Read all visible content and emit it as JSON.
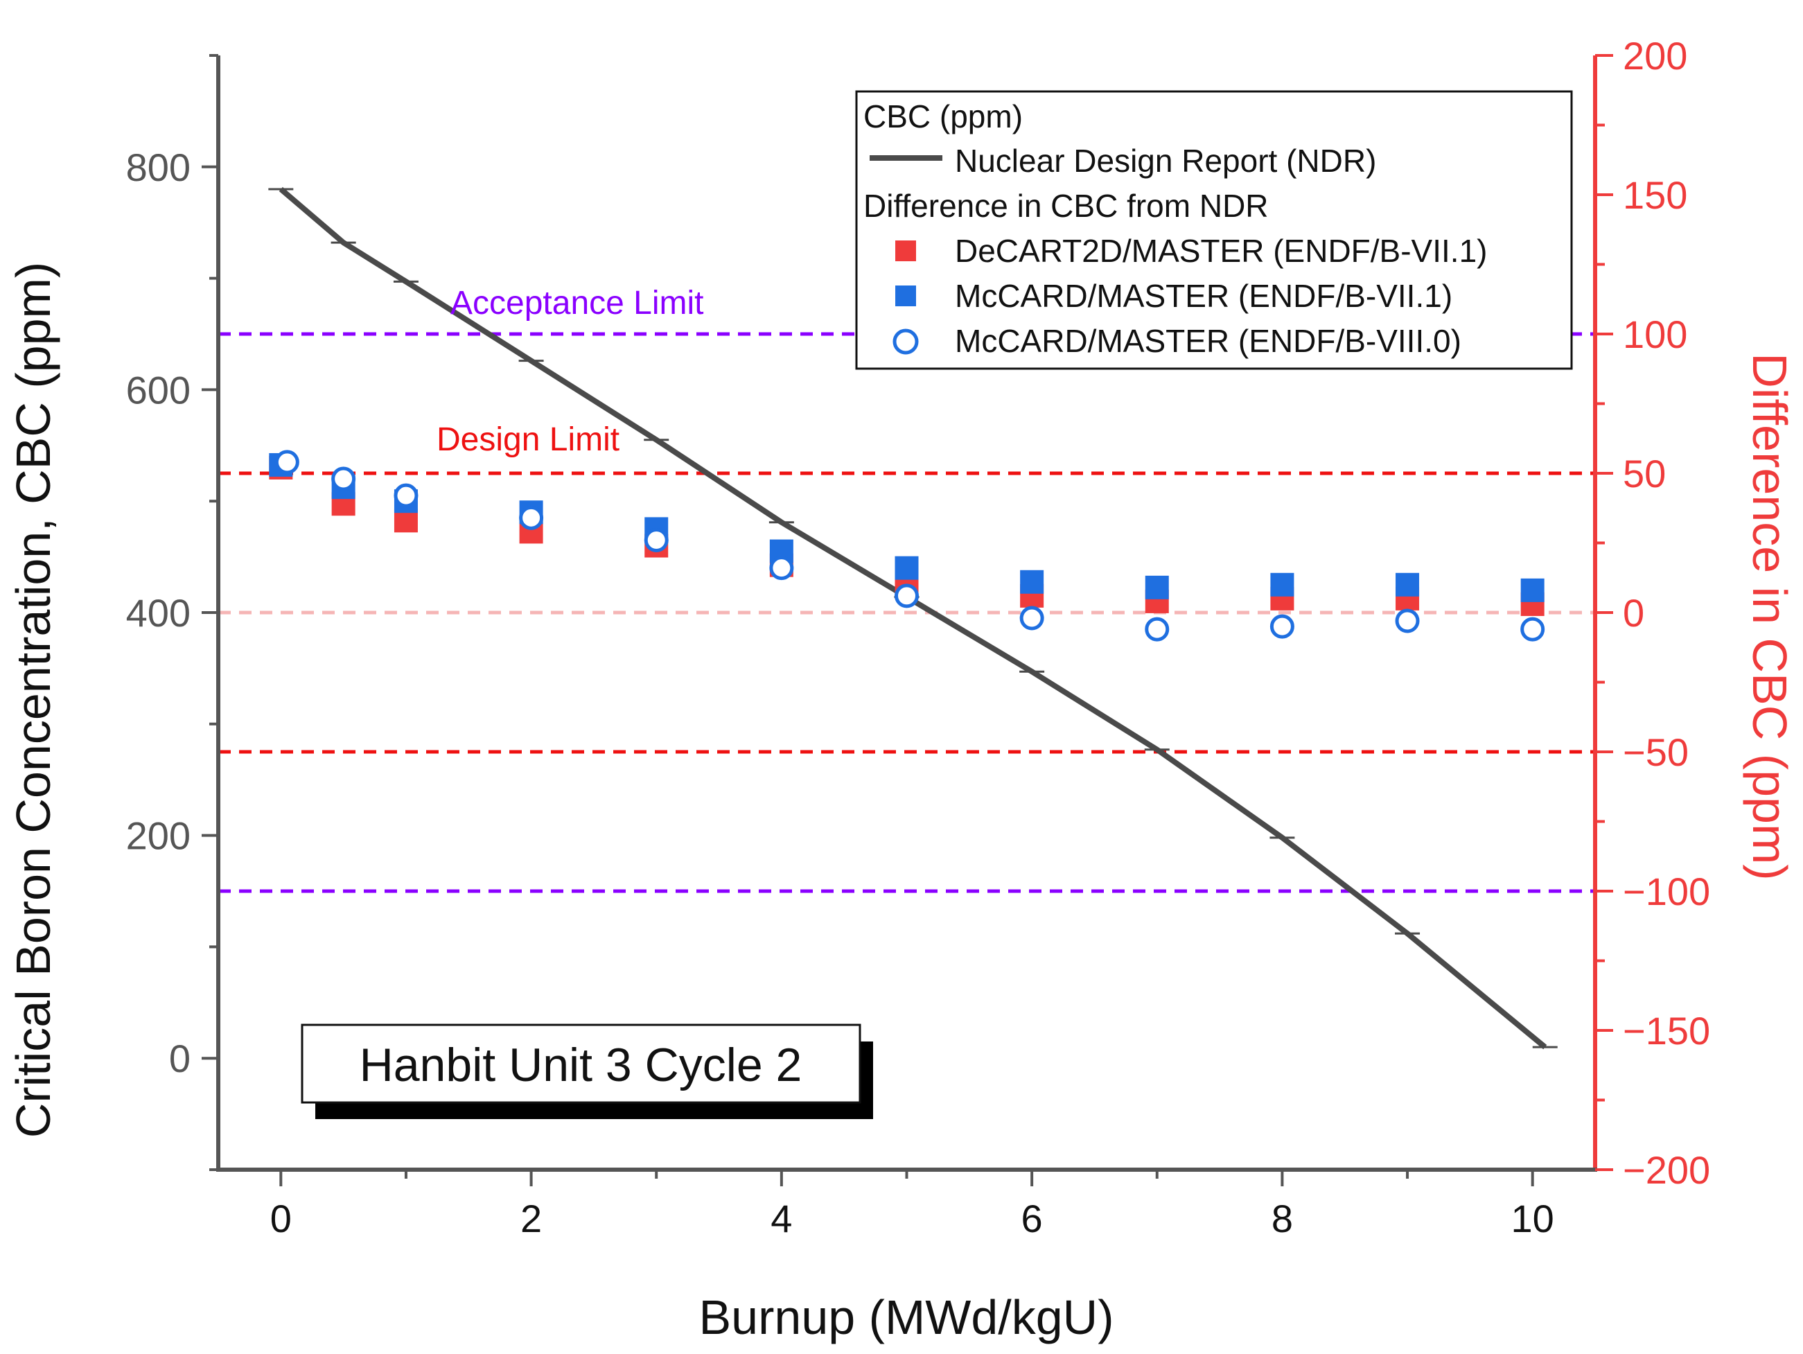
{
  "chart_data": {
    "type": "line",
    "title": "",
    "annotation": "Hanbit Unit 3 Cycle 2",
    "xlabel": "Burnup (MWd/kgU)",
    "ylabel_left": "Critical Boron Concentration, CBC (ppm)",
    "ylabel_right": "Difference in CBC (ppm)",
    "xlim": [
      -0.5,
      10.5
    ],
    "ylim_left": [
      -100,
      900
    ],
    "ylim_right": [
      -200,
      200
    ],
    "x_ticks": [
      0,
      2,
      4,
      6,
      8,
      10
    ],
    "y_ticks_left": [
      0,
      200,
      400,
      600,
      800
    ],
    "y_ticks_right": [
      -200,
      -150,
      -100,
      -50,
      0,
      50,
      100,
      150,
      200
    ],
    "y_tick_labels_right": [
      "−200",
      "−150",
      "−100",
      "−50",
      "0",
      "50",
      "100",
      "150",
      "200"
    ],
    "x": [
      0,
      0.5,
      1,
      2,
      3,
      4,
      5,
      6,
      7,
      8,
      9,
      10
    ],
    "cbc_series": {
      "name": "Nuclear Design Report (NDR)",
      "x": [
        0,
        0.5,
        1,
        2,
        3,
        4,
        5,
        6,
        7,
        8,
        9,
        10.1
      ],
      "values": [
        780,
        732,
        697,
        626,
        555,
        481,
        414,
        347,
        277,
        198,
        112,
        10
      ]
    },
    "series": [
      {
        "name": "DeCART2D/MASTER (ENDF/B-VII.1)",
        "marker": "square",
        "values": [
          52,
          39,
          33,
          29,
          24,
          17,
          9,
          6,
          4,
          5,
          5,
          3
        ]
      },
      {
        "name": "McCARD/MASTER (ENDF/B-VII.1)",
        "marker": "square",
        "values": [
          53,
          45,
          40,
          36,
          30,
          22,
          16,
          11,
          9,
          10,
          10,
          8
        ]
      },
      {
        "name": "McCARD/MASTER (ENDF/B-VIII.0)",
        "marker": "open-circle",
        "values": [
          54,
          48,
          42,
          34,
          26,
          16,
          6,
          -2,
          -6,
          -5,
          -3,
          -6
        ]
      }
    ],
    "limits": [
      {
        "label": "Acceptance Limit",
        "value": 100,
        "mirror": -100
      },
      {
        "label": "Design Limit",
        "value": 50,
        "mirror": -50
      },
      {
        "label": "",
        "value": 0
      }
    ],
    "legend": {
      "position": "top-right",
      "header1": "CBC (ppm)",
      "header2": "Difference in CBC from NDR"
    }
  },
  "colors": {
    "axis_left": "#555555",
    "axis_right": "#ef3b3b",
    "ndr_line": "#4a4a4a",
    "decart": "#ef3b3b",
    "mccard71": "#1f6fe0",
    "mccard80": "#1f6fe0",
    "acceptance": "#8a00ff",
    "design": "#ee1111",
    "zero": "#f5b5b5"
  }
}
